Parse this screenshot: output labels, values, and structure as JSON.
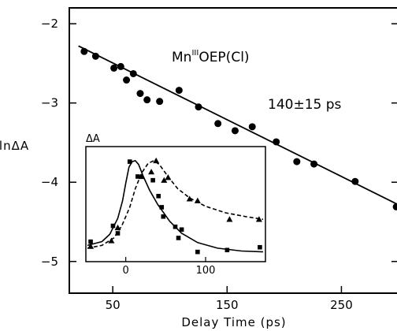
{
  "chart_data": {
    "type": "scatter",
    "xlabel": "Delay Time (ps)",
    "ylabel": "lnΔA",
    "xlim": [
      12,
      300
    ],
    "ylim": [
      -5.4,
      -1.8
    ],
    "xticks": [
      50,
      150,
      250
    ],
    "yticks": [
      -2,
      -3,
      -4,
      -5
    ],
    "annotations": {
      "compound_main": "Mn",
      "compound_sup": "III",
      "compound_rest": "OEP(Cl)",
      "lifetime": "140±15 ps"
    },
    "series": [
      {
        "marker": "circle",
        "points": [
          [
            25,
            -2.35
          ],
          [
            35,
            -2.41
          ],
          [
            51,
            -2.56
          ],
          [
            57,
            -2.54
          ],
          [
            62,
            -2.71
          ],
          [
            68,
            -2.63
          ],
          [
            74,
            -2.88
          ],
          [
            80,
            -2.96
          ],
          [
            91,
            -2.98
          ],
          [
            108,
            -2.84
          ],
          [
            125,
            -3.05
          ],
          [
            142,
            -3.26
          ],
          [
            157,
            -3.35
          ],
          [
            172,
            -3.3
          ],
          [
            193,
            -3.49
          ],
          [
            211,
            -3.74
          ],
          [
            226,
            -3.77
          ],
          [
            262,
            -3.99
          ],
          [
            298,
            -4.31
          ]
        ]
      }
    ],
    "fit_line": {
      "x": [
        20,
        302
      ],
      "y": [
        -2.28,
        -4.3
      ]
    },
    "inset": {
      "ylabel": "ΔA",
      "xlim": [
        -50,
        175
      ],
      "ylim": [
        0,
        1.05
      ],
      "xticks": [
        0,
        100
      ],
      "series": [
        {
          "marker": "square",
          "line": "solid",
          "points": [
            [
              -44,
              0.13
            ],
            [
              -16,
              0.3
            ],
            [
              -10,
              0.22
            ],
            [
              5,
              0.99
            ],
            [
              15,
              0.83
            ],
            [
              34,
              0.79
            ],
            [
              41,
              0.62
            ],
            [
              45,
              0.5
            ],
            [
              47,
              0.4
            ],
            [
              62,
              0.29
            ],
            [
              66,
              0.17
            ],
            [
              70,
              0.26
            ],
            [
              90,
              0.02
            ],
            [
              127,
              0.04
            ],
            [
              168,
              0.07
            ]
          ],
          "curve": [
            [
              -48,
              0.09
            ],
            [
              -30,
              0.13
            ],
            [
              -20,
              0.21
            ],
            [
              -10,
              0.38
            ],
            [
              -4,
              0.57
            ],
            [
              0,
              0.76
            ],
            [
              4,
              0.93
            ],
            [
              8,
              0.99
            ],
            [
              12,
              1.0
            ],
            [
              16,
              0.96
            ],
            [
              22,
              0.83
            ],
            [
              30,
              0.68
            ],
            [
              40,
              0.53
            ],
            [
              55,
              0.35
            ],
            [
              70,
              0.22
            ],
            [
              90,
              0.12
            ],
            [
              115,
              0.06
            ],
            [
              145,
              0.03
            ],
            [
              172,
              0.02
            ]
          ]
        },
        {
          "marker": "triangle",
          "line": "dashed",
          "points": [
            [
              -44,
              0.08
            ],
            [
              -18,
              0.14
            ],
            [
              -10,
              0.28
            ],
            [
              20,
              0.83
            ],
            [
              32,
              0.88
            ],
            [
              38,
              1.0
            ],
            [
              48,
              0.79
            ],
            [
              53,
              0.82
            ],
            [
              80,
              0.59
            ],
            [
              90,
              0.57
            ],
            [
              130,
              0.37
            ],
            [
              167,
              0.37
            ]
          ],
          "curve": [
            [
              -48,
              0.06
            ],
            [
              -30,
              0.09
            ],
            [
              -15,
              0.17
            ],
            [
              -5,
              0.3
            ],
            [
              5,
              0.5
            ],
            [
              12,
              0.7
            ],
            [
              20,
              0.87
            ],
            [
              28,
              0.97
            ],
            [
              35,
              1.0
            ],
            [
              42,
              0.96
            ],
            [
              52,
              0.84
            ],
            [
              65,
              0.7
            ],
            [
              80,
              0.6
            ],
            [
              100,
              0.51
            ],
            [
              125,
              0.44
            ],
            [
              150,
              0.4
            ],
            [
              172,
              0.37
            ]
          ]
        }
      ]
    }
  }
}
